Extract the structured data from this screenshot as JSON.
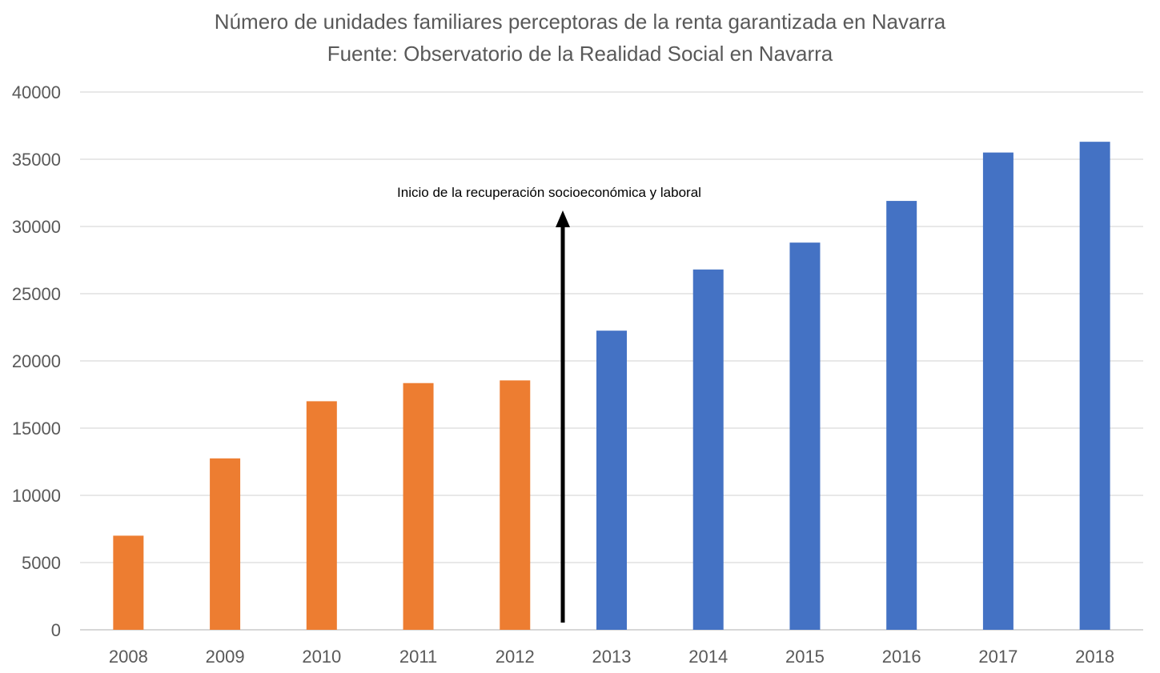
{
  "chart_data": {
    "type": "bar",
    "title": "Número de unidades familiares perceptoras de la renta garantizada en Navarra",
    "subtitle": "Fuente: Observatorio de la Realidad Social en Navarra",
    "categories": [
      "2008",
      "2009",
      "2010",
      "2011",
      "2012",
      "2013",
      "2014",
      "2015",
      "2016",
      "2017",
      "2018"
    ],
    "values": [
      7000,
      12750,
      17000,
      18350,
      18550,
      22250,
      26800,
      28800,
      31900,
      35500,
      36300
    ],
    "bar_colors": [
      "#ED7D31",
      "#ED7D31",
      "#ED7D31",
      "#ED7D31",
      "#ED7D31",
      "#4472C4",
      "#4472C4",
      "#4472C4",
      "#4472C4",
      "#4472C4",
      "#4472C4"
    ],
    "ylim": [
      0,
      40000
    ],
    "yticks": [
      "0",
      "5000",
      "10000",
      "15000",
      "20000",
      "25000",
      "30000",
      "35000",
      "40000"
    ],
    "grid": true,
    "annotation": {
      "text": "Inicio de la recuperación socioeconómica y laboral",
      "between": [
        "2012",
        "2013"
      ]
    }
  }
}
